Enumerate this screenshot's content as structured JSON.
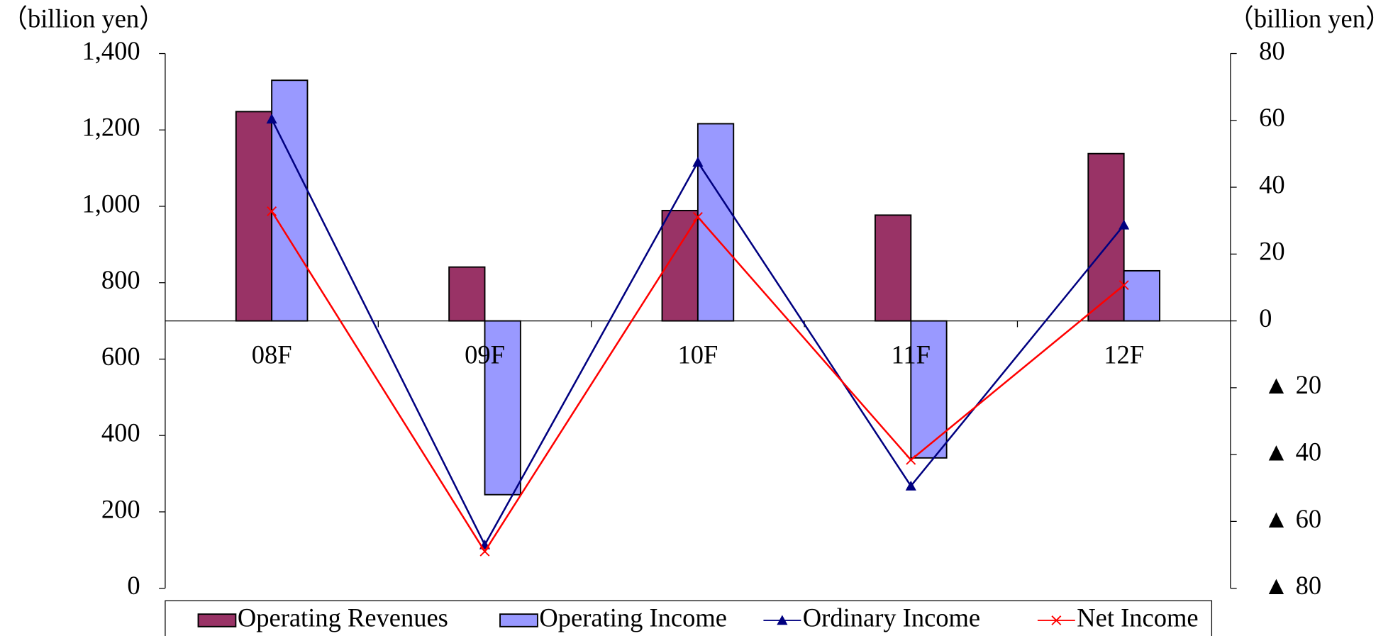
{
  "chart_data": {
    "type": "bar_line",
    "ylabel": "（billion yen）",
    "y2label": "（billion yen）",
    "categories": [
      "08F",
      "09F",
      "10F",
      "11F",
      "12F"
    ],
    "ylim": [
      0,
      1400
    ],
    "yticks": [
      0,
      200,
      400,
      600,
      800,
      {
        "value": 1000,
        "label": "1,000"
      },
      {
        "value": 1200,
        "label": "1,200"
      },
      {
        "value": 1400,
        "label": "1,400"
      }
    ],
    "y2lim": [
      -80,
      80
    ],
    "y2ticks": [
      {
        "value": -80,
        "label": "▲ 80"
      },
      {
        "value": -60,
        "label": "▲ 60"
      },
      {
        "value": -40,
        "label": "▲ 40"
      },
      {
        "value": -20,
        "label": "▲ 20"
      },
      0,
      20,
      40,
      60,
      80
    ],
    "series": [
      {
        "name": "Operating Revenues",
        "type": "bar",
        "color": "#993366",
        "values": [
          1248,
          841,
          989,
          977,
          1138
        ]
      },
      {
        "name": "Operating Income",
        "type": "bar",
        "axis": "y2",
        "color": "#9999ff",
        "values": [
          72,
          -52,
          59,
          -41,
          15
        ]
      },
      {
        "name": "Ordinary Income",
        "type": "line",
        "axis": "y2",
        "marker": "triangle",
        "color": "#000080",
        "values": [
          60.4,
          -67,
          47.5,
          -49.4,
          28.7
        ]
      },
      {
        "name": "Net Income",
        "type": "line",
        "axis": "y2",
        "marker": "x",
        "color": "#ff0000",
        "values": [
          32.8,
          -69,
          31.1,
          -41.6,
          10.7
        ]
      }
    ],
    "legend": "bottom"
  }
}
